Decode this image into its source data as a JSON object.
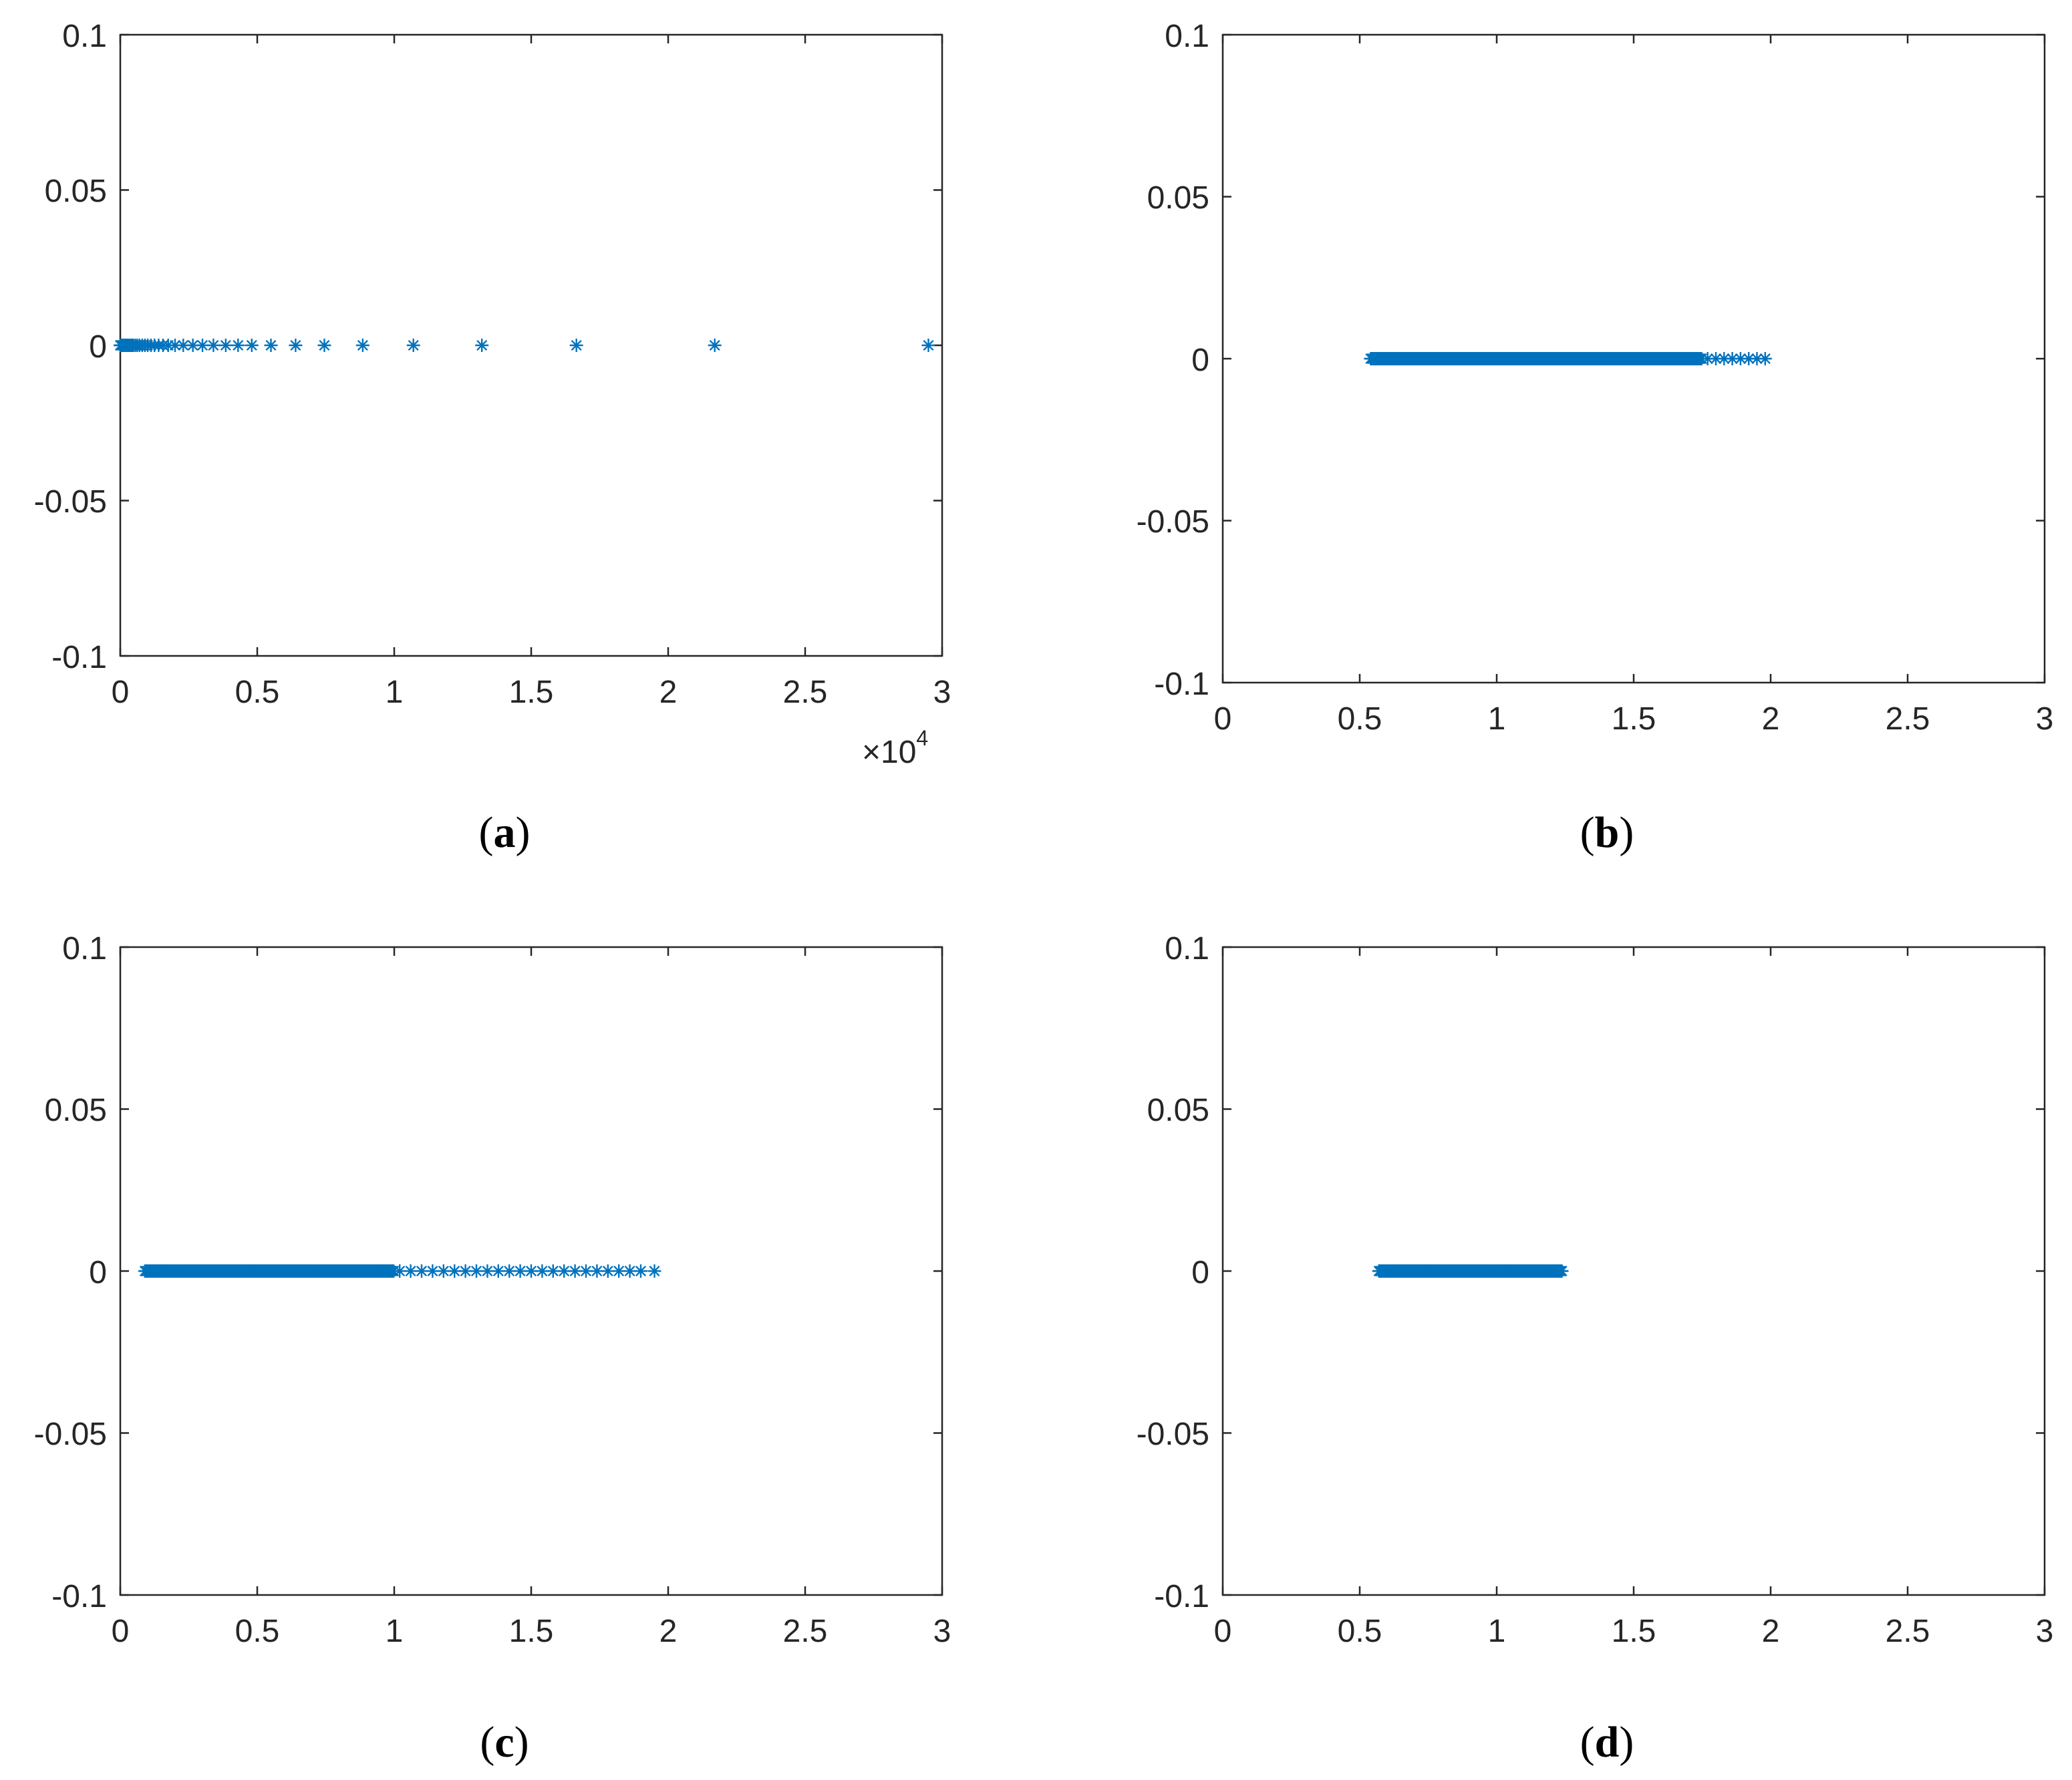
{
  "figure": {
    "marker_color": "#0072BD",
    "axis_color": "#262626",
    "marker": "asterisk"
  },
  "chart_data": [
    {
      "panel": "a",
      "caption": "(a)",
      "caption_letter": "a",
      "type": "scatter",
      "xlim": [
        0,
        3
      ],
      "ylim": [
        -0.1,
        0.1
      ],
      "xticks": [
        "0",
        "0.5",
        "1",
        "1.5",
        "2",
        "2.5",
        "3"
      ],
      "yticks": [
        "0.1",
        "0.05",
        "0",
        "-0.05",
        "-0.1"
      ],
      "x_multiplier": "×10",
      "x_multiplier_exponent": "4",
      "x": [
        0.0,
        0.003,
        0.006,
        0.009,
        0.012,
        0.016,
        0.02,
        0.024,
        0.028,
        0.033,
        0.038,
        0.043,
        0.048,
        0.055,
        0.062,
        0.07,
        0.08,
        0.09,
        0.1,
        0.112,
        0.125,
        0.14,
        0.156,
        0.175,
        0.2,
        0.23,
        0.265,
        0.3,
        0.34,
        0.385,
        0.43,
        0.48,
        0.55,
        0.64,
        0.745,
        0.885,
        1.07,
        1.32,
        1.665,
        2.17,
        2.95
      ],
      "y_value": 0
    },
    {
      "panel": "b",
      "caption": "(b)",
      "caption_letter": "b",
      "type": "scatter",
      "xlim": [
        0,
        3
      ],
      "ylim": [
        -0.1,
        0.1
      ],
      "xticks": [
        "0",
        "0.5",
        "1",
        "1.5",
        "2",
        "2.5",
        "3"
      ],
      "yticks": [
        "0.1",
        "0.05",
        "0",
        "-0.05",
        "-0.1"
      ],
      "x_range": [
        0.54,
        1.98
      ],
      "x_dense_range": [
        0.54,
        1.75
      ],
      "x_sparse": [
        1.77,
        1.8,
        1.83,
        1.86,
        1.89,
        1.92,
        1.95,
        1.98
      ],
      "y_value": 0
    },
    {
      "panel": "c",
      "caption": "(c)",
      "caption_letter": "c",
      "type": "scatter",
      "xlim": [
        0,
        3
      ],
      "ylim": [
        -0.1,
        0.1
      ],
      "xticks": [
        "0",
        "0.5",
        "1",
        "1.5",
        "2",
        "2.5",
        "3"
      ],
      "yticks": [
        "0.1",
        "0.05",
        "0",
        "-0.05",
        "-0.1"
      ],
      "x_range": [
        0.09,
        1.95
      ],
      "x_dense_range": [
        0.09,
        1.0
      ],
      "x_sparse": [
        1.02,
        1.06,
        1.1,
        1.14,
        1.18,
        1.22,
        1.26,
        1.3,
        1.34,
        1.38,
        1.42,
        1.46,
        1.5,
        1.54,
        1.58,
        1.62,
        1.66,
        1.7,
        1.74,
        1.78,
        1.82,
        1.86,
        1.9,
        1.95
      ],
      "y_value": 0
    },
    {
      "panel": "d",
      "caption": "(d)",
      "caption_letter": "d",
      "type": "scatter",
      "xlim": [
        0,
        3
      ],
      "ylim": [
        -0.1,
        0.1
      ],
      "xticks": [
        "0",
        "0.5",
        "1",
        "1.5",
        "2",
        "2.5",
        "3"
      ],
      "yticks": [
        "0.1",
        "0.05",
        "0",
        "-0.05",
        "-0.1"
      ],
      "x_range": [
        0.57,
        1.24
      ],
      "x_dense_range": [
        0.57,
        1.24
      ],
      "x_sparse": [],
      "y_value": 0
    }
  ]
}
